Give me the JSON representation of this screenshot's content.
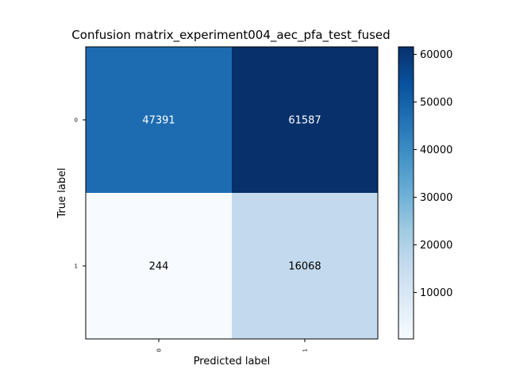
{
  "chart_data": {
    "type": "heatmap",
    "title": "Confusion matrix_experiment004_aec_pfa_test_fused",
    "xlabel": "Predicted label",
    "ylabel": "True label",
    "x_categories": [
      "0",
      "1"
    ],
    "y_categories": [
      "0",
      "1"
    ],
    "matrix": [
      [
        47391,
        61587
      ],
      [
        244,
        16068
      ]
    ],
    "colormap": "Blues",
    "colorbar": {
      "range": [
        244,
        61587
      ],
      "ticks": [
        10000,
        20000,
        30000,
        40000,
        50000,
        60000
      ],
      "tick_labels": [
        "10000",
        "20000",
        "30000",
        "40000",
        "50000",
        "60000"
      ]
    },
    "grid": false
  }
}
